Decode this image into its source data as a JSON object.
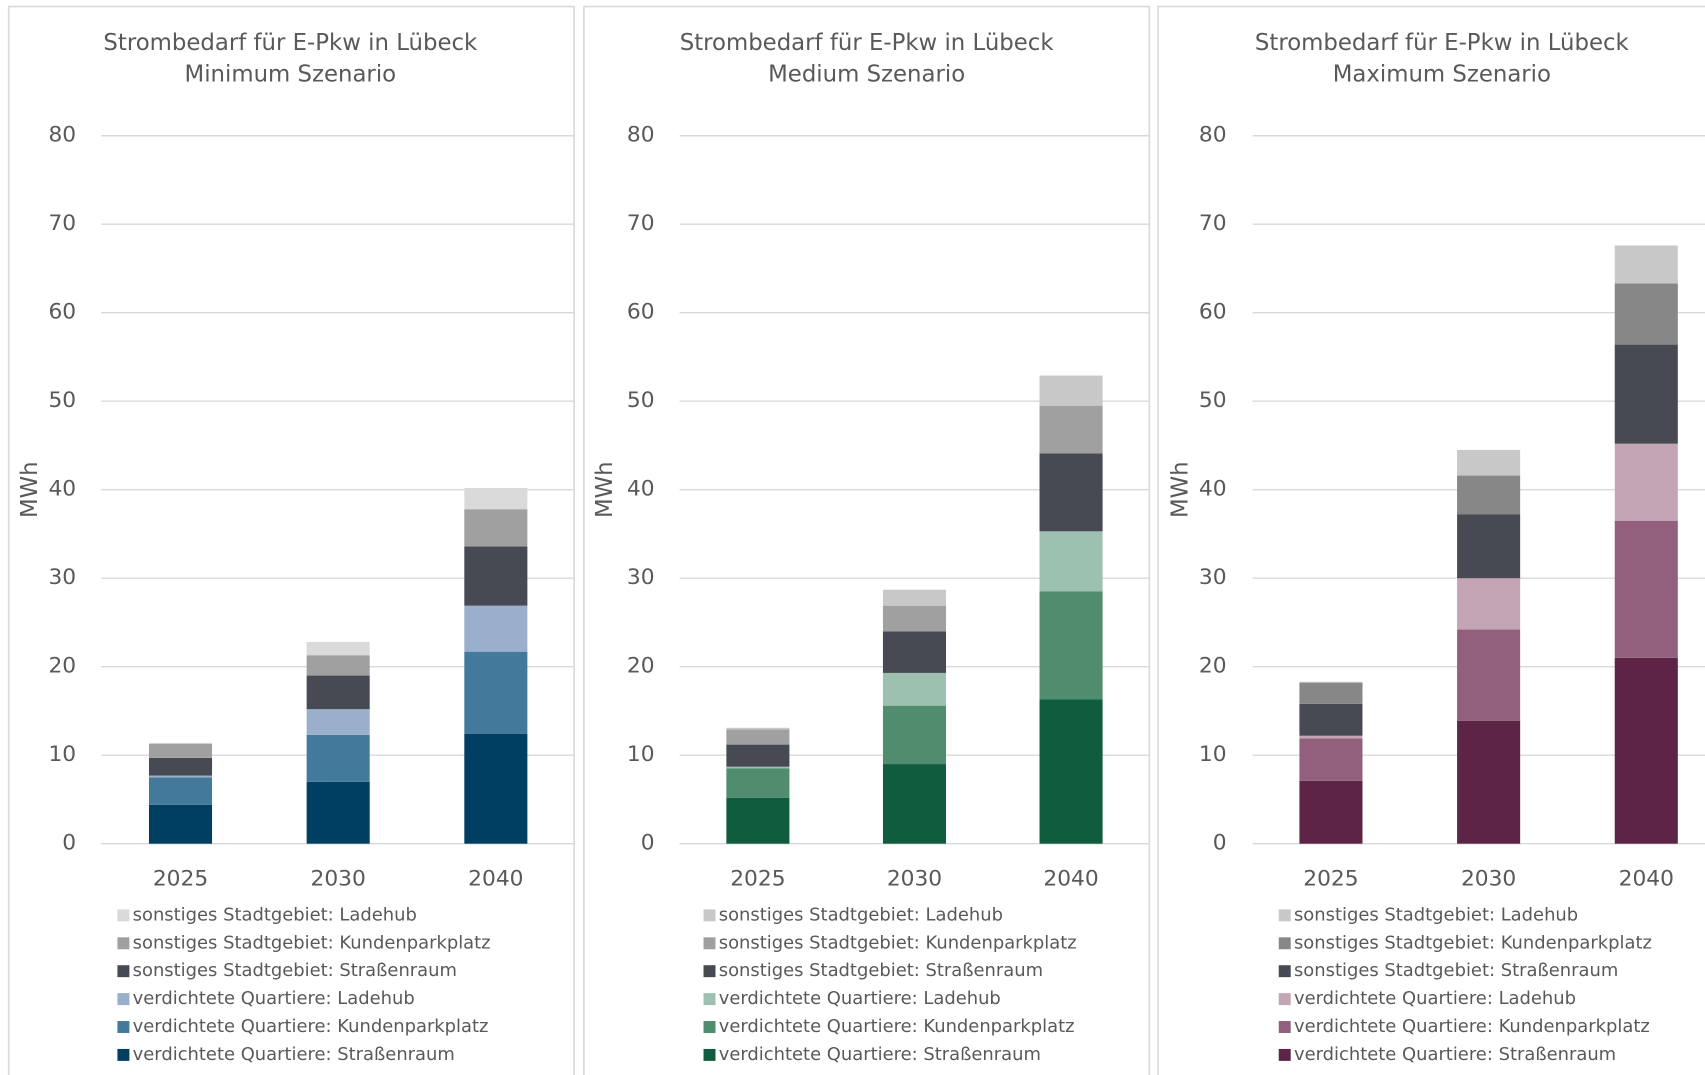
{
  "chart_data": [
    {
      "type": "bar",
      "stacked": true,
      "title": "Strombedarf für E-Pkw in Lübeck",
      "subtitle": "Minimum Szenario",
      "ylabel": "MWh",
      "categories": [
        "2025",
        "2030",
        "2040"
      ],
      "ylim": [
        0,
        80
      ],
      "yticks": [
        0,
        10,
        20,
        30,
        40,
        50,
        60,
        70,
        80
      ],
      "grid": true,
      "series": [
        {
          "name": "verdichtete Quartiere: Straßenraum",
          "color": "#003f62",
          "values": [
            4.4,
            7.0,
            12.4
          ]
        },
        {
          "name": "verdichtete Quartiere: Kundenparkplatz",
          "color": "#43799a",
          "values": [
            3.1,
            5.3,
            9.3
          ]
        },
        {
          "name": "verdichtete Quartiere: Ladehub",
          "color": "#9aafcb",
          "values": [
            0.2,
            2.9,
            5.2
          ]
        },
        {
          "name": "sonstiges Stadtgebiet: Straßenraum",
          "color": "#474a52",
          "values": [
            2.0,
            3.8,
            6.7
          ]
        },
        {
          "name": "sonstiges Stadtgebiet: Kundenparkplatz",
          "color": "#a0a0a0",
          "values": [
            1.6,
            2.3,
            4.2
          ]
        },
        {
          "name": "sonstiges Stadtgebiet: Ladehub",
          "color": "#dadada",
          "values": [
            0.1,
            1.5,
            2.4
          ]
        }
      ]
    },
    {
      "type": "bar",
      "stacked": true,
      "title": "Strombedarf für E-Pkw in Lübeck",
      "subtitle": "Medium Szenario",
      "ylabel": "MWh",
      "categories": [
        "2025",
        "2030",
        "2040"
      ],
      "ylim": [
        0,
        80
      ],
      "yticks": [
        0,
        10,
        20,
        30,
        40,
        50,
        60,
        70,
        80
      ],
      "grid": true,
      "series": [
        {
          "name": "verdichtete Quartiere: Straßenraum",
          "color": "#0f5c3f",
          "values": [
            5.2,
            9.0,
            16.3
          ]
        },
        {
          "name": "verdichtete Quartiere: Kundenparkplatz",
          "color": "#4f8d6e",
          "values": [
            3.3,
            6.6,
            12.2
          ]
        },
        {
          "name": "verdichtete Quartiere: Ladehub",
          "color": "#9dc1b0",
          "values": [
            0.2,
            3.7,
            6.8
          ]
        },
        {
          "name": "sonstiges Stadtgebiet: Straßenraum",
          "color": "#474a52",
          "values": [
            2.5,
            4.7,
            8.8
          ]
        },
        {
          "name": "sonstiges Stadtgebiet: Kundenparkplatz",
          "color": "#a0a0a0",
          "values": [
            1.7,
            2.9,
            5.4
          ]
        },
        {
          "name": "sonstiges Stadtgebiet: Ladehub",
          "color": "#c8c8c8",
          "values": [
            0.2,
            1.8,
            3.4
          ]
        }
      ]
    },
    {
      "type": "bar",
      "stacked": true,
      "title": "Strombedarf für E-Pkw in Lübeck",
      "subtitle": "Maximum Szenario",
      "ylabel": "MWh",
      "categories": [
        "2025",
        "2030",
        "2040"
      ],
      "ylim": [
        0,
        80
      ],
      "yticks": [
        0,
        10,
        20,
        30,
        40,
        50,
        60,
        70,
        80
      ],
      "grid": true,
      "series": [
        {
          "name": "verdichtete Quartiere: Straßenraum",
          "color": "#5e2445",
          "values": [
            7.1,
            13.9,
            21.0
          ]
        },
        {
          "name": "verdichtete Quartiere: Kundenparkplatz",
          "color": "#92607c",
          "values": [
            4.8,
            10.3,
            15.5
          ]
        },
        {
          "name": "verdichtete Quartiere: Ladehub",
          "color": "#c4a5b6",
          "values": [
            0.3,
            5.8,
            8.7
          ]
        },
        {
          "name": "sonstiges Stadtgebiet: Straßenraum",
          "color": "#474a52",
          "values": [
            3.6,
            7.2,
            11.2
          ]
        },
        {
          "name": "sonstiges Stadtgebiet: Kundenparkplatz",
          "color": "#878787",
          "values": [
            2.4,
            4.4,
            6.9
          ]
        },
        {
          "name": "sonstiges Stadtgebiet: Ladehub",
          "color": "#c8c8c8",
          "values": [
            0.1,
            2.9,
            4.3
          ]
        }
      ]
    }
  ]
}
